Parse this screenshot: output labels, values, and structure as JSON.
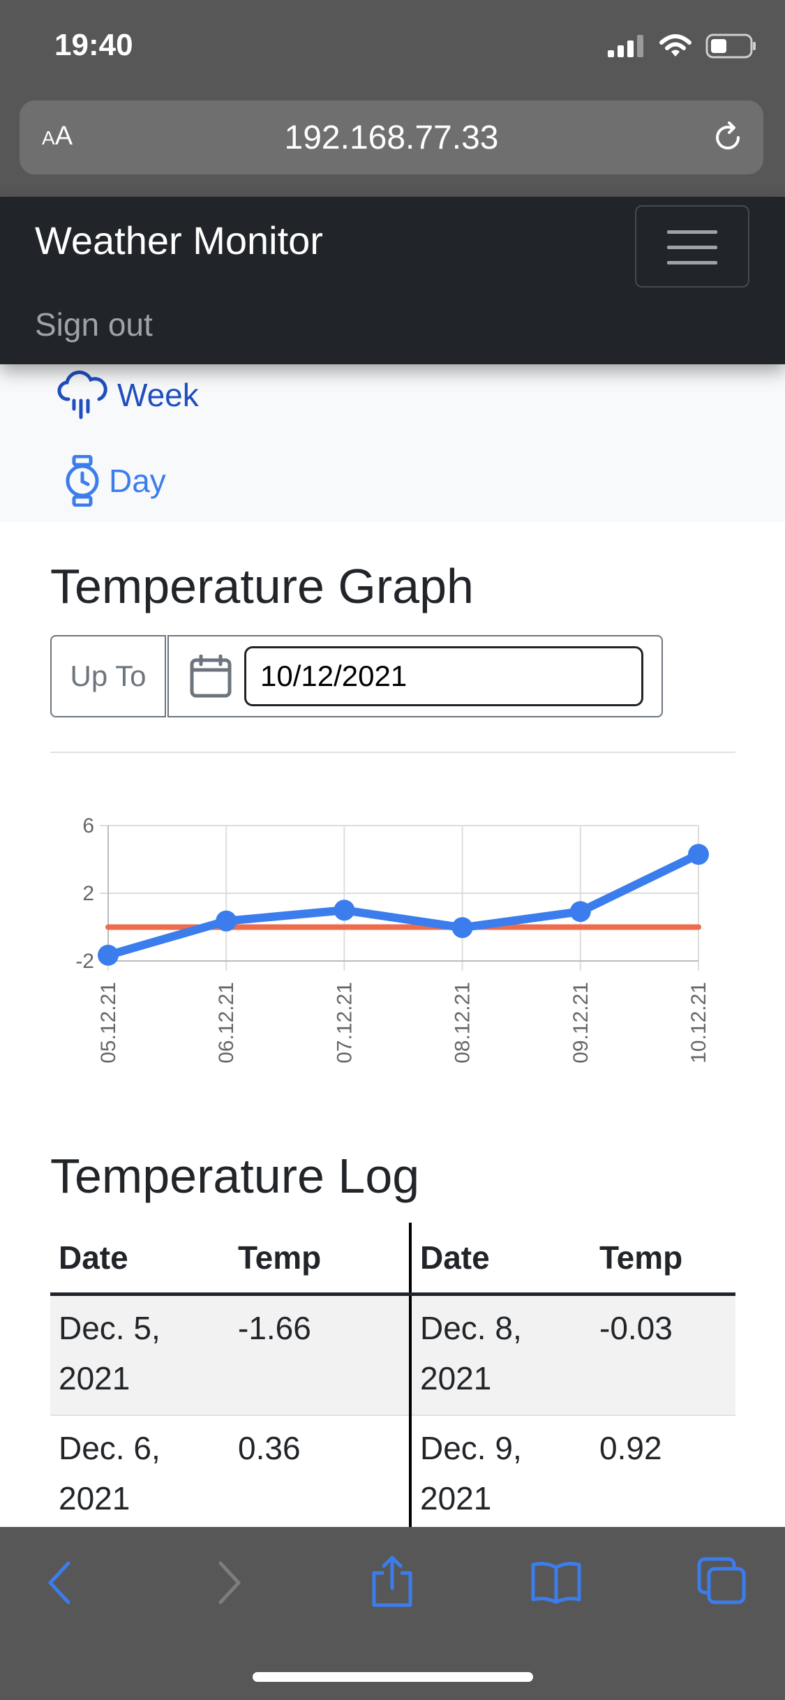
{
  "status": {
    "time": "19:40"
  },
  "browser": {
    "text_size_label_small": "A",
    "text_size_label_large": "A",
    "url": "192.168.77.33"
  },
  "navbar": {
    "brand": "Weather Monitor",
    "sign_out": "Sign out"
  },
  "subnav": {
    "items": [
      {
        "label": "Week",
        "icon": "cloud-rain-icon"
      },
      {
        "label": "Day",
        "icon": "watch-icon"
      }
    ]
  },
  "graph": {
    "heading": "Temperature Graph",
    "filter_label": "Up To",
    "date_value": "10/12/2021"
  },
  "chart_data": {
    "type": "line",
    "title": "",
    "categories": [
      "05.12.21",
      "06.12.21",
      "07.12.21",
      "08.12.21",
      "09.12.21",
      "10.12.21"
    ],
    "series": [
      {
        "values": [
          -1.66,
          0.36,
          1.0,
          -0.03,
          0.92,
          4.3
        ],
        "color": "#3b7ded"
      },
      {
        "values": [
          0.0,
          0.0,
          0.0,
          0.0,
          0.0,
          0.0
        ],
        "color": "#ee6b4d"
      }
    ],
    "yticks": [
      "6",
      "2",
      "-2"
    ],
    "ylim": [
      -2,
      6
    ],
    "grid": true,
    "legend": "none"
  },
  "log": {
    "heading": "Temperature Log",
    "headers": [
      "Date",
      "Temp",
      "Date",
      "Temp"
    ],
    "rows": [
      [
        "Dec. 5, 2021",
        "-1.66",
        "Dec. 8, 2021",
        "-0.03"
      ],
      [
        "Dec. 6, 2021",
        "0.36",
        "Dec. 9, 2021",
        "0.92"
      ]
    ]
  },
  "colors": {
    "accent": "#0d6efd",
    "navbar": "#212529",
    "series_main": "#3b7ded",
    "series_zero": "#ee6b4d"
  }
}
